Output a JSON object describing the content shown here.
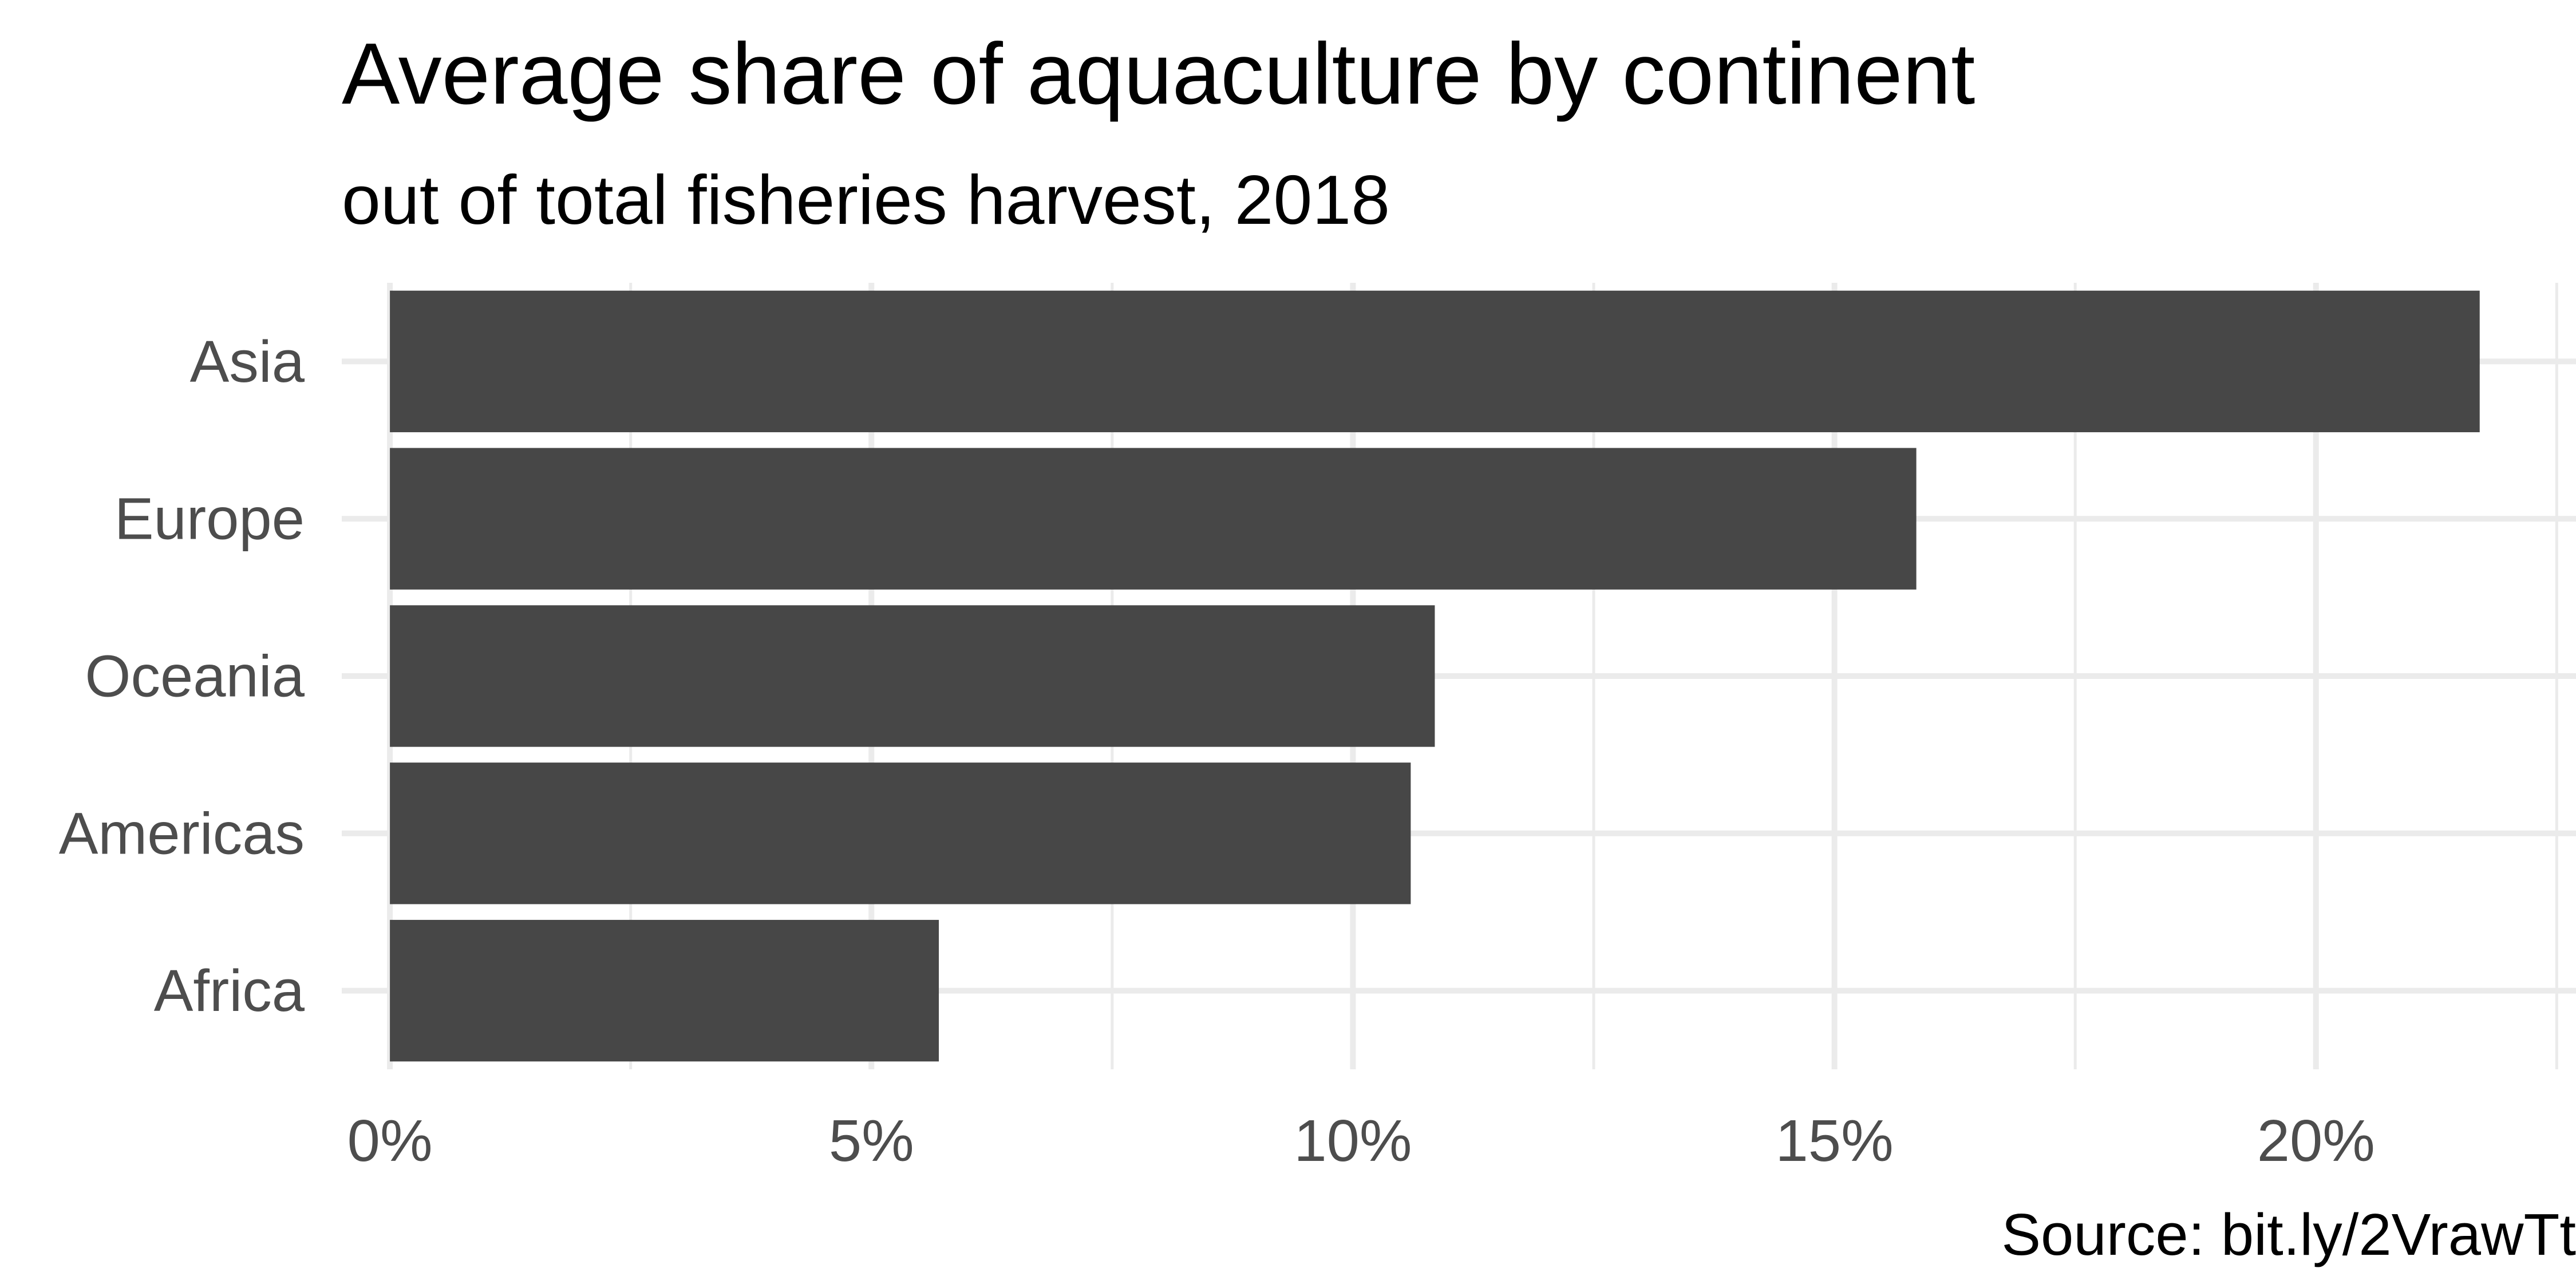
{
  "chart_data": {
    "type": "bar",
    "orientation": "horizontal",
    "title": "Average share of aquaculture by continent",
    "subtitle": "out of total fisheries harvest, 2018",
    "caption": "Source: bit.ly/2VrawTt",
    "categories": [
      "Africa",
      "Americas",
      "Oceania",
      "Europe",
      "Asia"
    ],
    "values": [
      5.7,
      10.6,
      10.85,
      15.85,
      21.7
    ],
    "unit": "%",
    "xlim": [
      -0.5,
      22.7
    ],
    "x_ticks": [
      0,
      5,
      10,
      15,
      20
    ],
    "x_tick_labels": [
      "0%",
      "5%",
      "10%",
      "15%",
      "20%"
    ],
    "x_minor_ticks": [
      2.5,
      7.5,
      12.5,
      17.5,
      22.5
    ],
    "grid": true,
    "legend": "none",
    "colors": {
      "bar": "#474747",
      "grid": "#ebebeb",
      "tick_text": "#4d4d4d",
      "title_text": "#000000",
      "background": "#ffffff"
    }
  }
}
